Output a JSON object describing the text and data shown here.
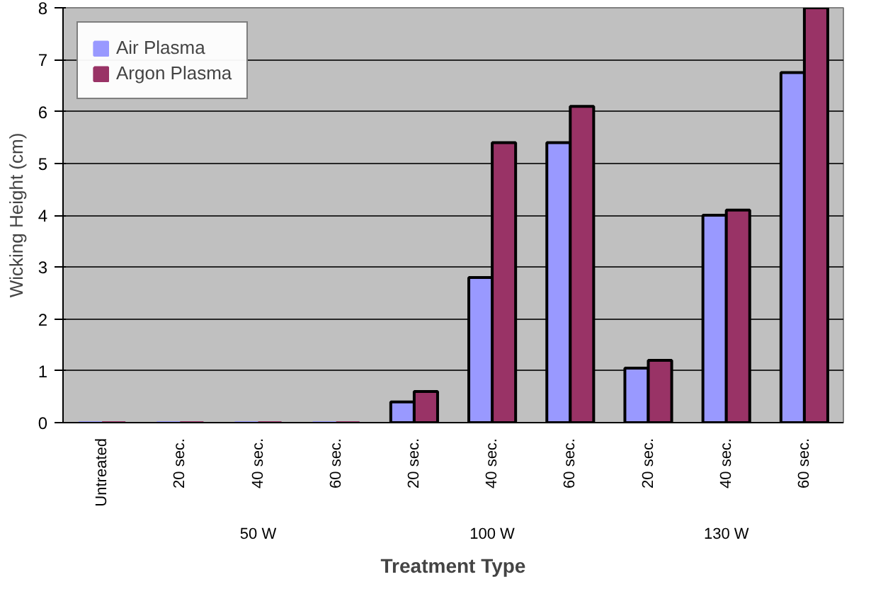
{
  "chart_data": {
    "type": "bar",
    "xlabel": "Treatment Type",
    "ylabel": "Wicking Height (cm)",
    "categories": [
      "Untreated",
      "20 sec.",
      "40 sec.",
      "60 sec.",
      "20 sec.",
      "40 sec.",
      "60 sec.",
      "20 sec.",
      "40 sec.",
      "60 sec."
    ],
    "annotations": [
      "50 W",
      "100 W",
      "130 W"
    ],
    "series": [
      {
        "name": "Air Plasma",
        "color": "#9999ff",
        "values": [
          0,
          0,
          0,
          0,
          0.4,
          2.8,
          5.4,
          1.05,
          4.0,
          6.75
        ]
      },
      {
        "name": "Argon Plasma",
        "color": "#993366",
        "values": [
          0,
          0,
          0,
          0,
          0.6,
          5.4,
          6.1,
          1.2,
          4.1,
          8.0
        ]
      }
    ],
    "ylim": [
      0,
      8
    ],
    "yticks": [
      0,
      1,
      2,
      3,
      4,
      5,
      6,
      7,
      8
    ],
    "grid": "y",
    "legend": "top left"
  }
}
